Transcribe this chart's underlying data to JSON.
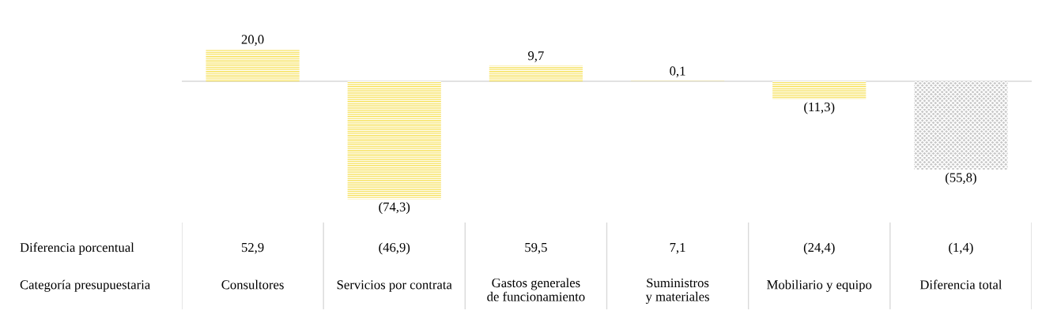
{
  "chart_data": {
    "type": "bar",
    "categories": [
      "Consultores",
      "Servicios por contrata",
      "Gastos generales\nde funcionamiento",
      "Suministros\ny materiales",
      "Mobiliario y equipo",
      "Diferencia total"
    ],
    "values": [
      20.0,
      -74.3,
      9.7,
      0.1,
      -11.3,
      -55.8
    ],
    "value_labels": [
      "20,0",
      "(74,3)",
      "9,7",
      "0,1",
      "(11,3)",
      "(55,8)"
    ],
    "colors": [
      "#f5dc3c",
      "#f5dc3c",
      "#f5dc3c",
      "#f5dc3c",
      "#f5dc3c",
      "#c8c8c8"
    ],
    "ref_lines": [
      {
        "axis": "y",
        "value": 0,
        "color": "#d9d9d9"
      }
    ],
    "annotations": [
      "Diferencia porcentual",
      "52,9",
      "(46,9)",
      "59,5",
      "7,1",
      "(24,4)",
      "(1,4)",
      "Categoría presupuestaria"
    ],
    "grid": false,
    "legend": false,
    "tick_labels": false
  }
}
